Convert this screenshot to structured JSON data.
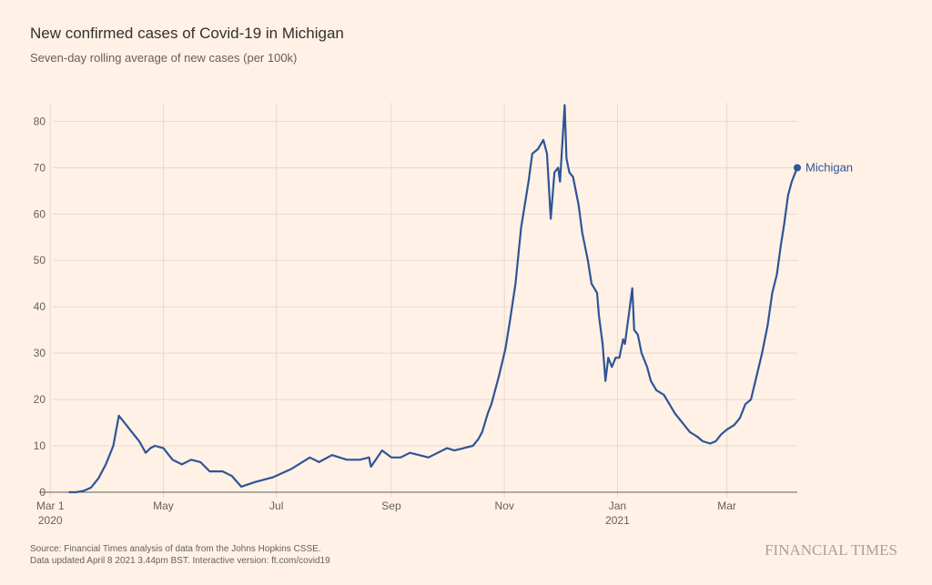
{
  "chart_data": {
    "type": "line",
    "title": "New confirmed cases of Covid-19 in Michigan",
    "subtitle": "Seven-day rolling average of new cases (per 100k)",
    "source": "Source: Financial Times analysis of data from the Johns Hopkins CSSE.",
    "note": "Data updated April 8 2021 3.44pm BST. Interactive version: ft.com/covid19",
    "brand": "FINANCIAL TIMES",
    "x": [
      10,
      14,
      18,
      22,
      26,
      30,
      34,
      37,
      40,
      44,
      48,
      51.5,
      54,
      56.5,
      61,
      66,
      71,
      76,
      81,
      86,
      93,
      98,
      103,
      110.5,
      120,
      130,
      140,
      145,
      152,
      160,
      167,
      172,
      173,
      179,
      184,
      189,
      194,
      199,
      204,
      209,
      214,
      218,
      223,
      228,
      231,
      233,
      236,
      238,
      242,
      245.6,
      248,
      251,
      254,
      258,
      260,
      263,
      266,
      268,
      270,
      272,
      274,
      275,
      277.5,
      278.5,
      280,
      282,
      285,
      287,
      290,
      292,
      295,
      296,
      298,
      299.5,
      301,
      303,
      305,
      307,
      309,
      310,
      312,
      314,
      315,
      317,
      319,
      322,
      324,
      327,
      331,
      334,
      337,
      341,
      345,
      349,
      352,
      356,
      359,
      362,
      365,
      369,
      372,
      375,
      378,
      381,
      384,
      387,
      389.5,
      392,
      394,
      396,
      398,
      400,
      403
    ],
    "series": [
      {
        "name": "Michigan",
        "color": "#2e5597",
        "values": [
          0,
          0,
          0.3,
          1,
          3,
          6,
          10,
          16.5,
          15,
          13,
          11,
          8.5,
          9.5,
          10,
          9.5,
          7,
          6,
          7,
          6.5,
          4.5,
          4.5,
          3.5,
          1.2,
          2.2,
          3.2,
          5,
          7.5,
          6.5,
          8,
          7,
          7,
          7.5,
          5.5,
          9,
          7.5,
          7.5,
          8.5,
          8,
          7.5,
          8.5,
          9.5,
          9,
          9.5,
          10,
          11.5,
          13,
          17,
          19,
          25,
          31,
          37,
          45,
          57,
          67,
          73,
          74,
          76,
          73,
          59,
          69,
          70,
          67,
          83.5,
          72,
          69,
          68,
          62,
          56,
          50,
          45,
          43,
          38,
          32,
          24,
          29,
          27,
          29,
          29,
          33,
          32,
          38,
          44,
          35,
          34,
          30,
          27,
          24,
          22,
          21,
          19,
          17,
          15,
          13,
          12,
          11,
          10.5,
          11,
          12.5,
          13.5,
          14.5,
          16,
          19,
          20,
          25,
          30,
          36,
          43,
          47,
          53,
          58,
          64,
          67,
          70
        ]
      }
    ],
    "xlim": [
      -6,
      403
    ],
    "xticks": [
      {
        "value": 0,
        "label": "Mar 1"
      },
      {
        "value": 61,
        "label": "May"
      },
      {
        "value": 122,
        "label": "Jul"
      },
      {
        "value": 184,
        "label": "Sep"
      },
      {
        "value": 245,
        "label": "Nov"
      },
      {
        "value": 306,
        "label": "Jan"
      },
      {
        "value": 365,
        "label": "Mar"
      }
    ],
    "xtick_years": [
      {
        "value": 0,
        "label": "2020"
      },
      {
        "value": 306,
        "label": "2021"
      }
    ],
    "ylim": [
      0,
      84
    ],
    "yticks": [
      0,
      10,
      20,
      30,
      40,
      50,
      60,
      70,
      80
    ],
    "grid": true
  }
}
